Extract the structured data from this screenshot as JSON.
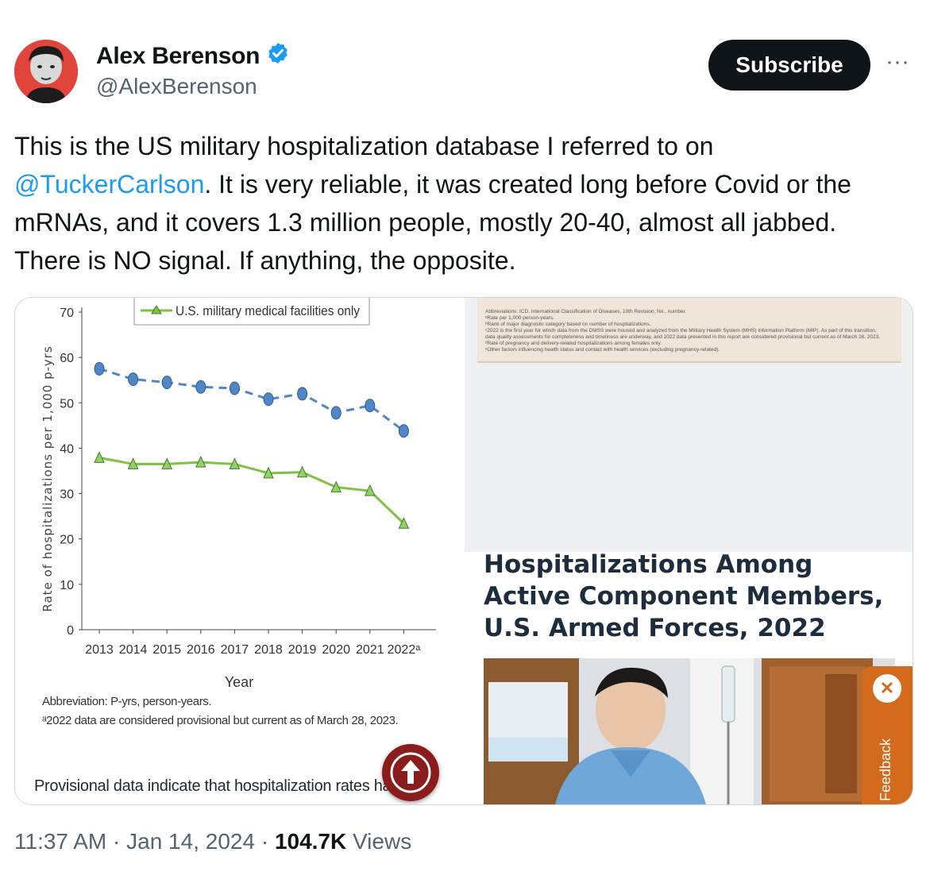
{
  "author": {
    "name": "Alex Berenson",
    "handle": "@AlexBerenson",
    "verified": true
  },
  "actions": {
    "subscribe_label": "Subscribe",
    "more_label": "···"
  },
  "tweet": {
    "text_before": "This is the US military hospitalization database I referred to on ",
    "mention": "@TuckerCarlson",
    "text_after": ". It is very reliable, it was created long before Covid or the mRNAs, and it covers 1.3 million people, mostly 20-40, almost all jabbed. There is NO signal. If anything, the opposite."
  },
  "media": {
    "chart": {
      "legend_label": "U.S. military medical facilities only",
      "abbreviation_note": "Abbreviation: P-yrs, person-years.",
      "footnote": "ᵃ2022 data are considered provisional but current as of March 28, 2023.",
      "provisional_text": "Provisional data indicate that hospitalization rates ha"
    },
    "report_notes": [
      "Abbreviations: ICD, International Classification of Diseases, 10th Revision; No., number.",
      "ᵃRate per 1,000 person-years.",
      "ᵇRank of major diagnostic category based on number of hospitalizations.",
      "ᶜ2022 is the first year for which data from the DMSS were housed and analyzed from the Military Health System (MHS) Information Platform (MIP). As part of this transition,",
      "data quality assessments for completeness and timeliness are underway, and 2022 data presented in this report are considered provisional but current as of March 28, 2023.",
      "ᵈRate of pregnancy and delivery-related hospitalizations among females only.",
      "ᵉOther factors influencing health status and contact with health services (excluding pregnancy-related)."
    ],
    "report_title": "Hospitalizations Among Active Component Members, U.S. Armed Forces, 2022",
    "feedback_label": "Feedback",
    "feedback_close": "✕"
  },
  "footer": {
    "time": "11:37 AM",
    "date": "Jan 14, 2024",
    "views_count": "104.7K",
    "views_label": "Views"
  },
  "chart_data": {
    "type": "line",
    "x": [
      "2013",
      "2014",
      "2015",
      "2016",
      "2017",
      "2018",
      "2019",
      "2020",
      "2021",
      "2022ᵃ"
    ],
    "xlabel": "Year",
    "ylabel": "Rate of hospitalizations per 1,000 p-yrs",
    "ylim": [
      0,
      70
    ],
    "yticks": [
      0,
      10,
      20,
      30,
      40,
      50,
      60,
      70
    ],
    "series": [
      {
        "values": [
          57.5,
          55.2,
          54.5,
          53.5,
          53.2,
          50.8,
          52.0,
          47.8,
          49.4,
          43.8
        ],
        "color": "#4f86c6",
        "style": "dashed",
        "marker": "circle"
      },
      {
        "name": "U.S. military medical facilities only",
        "values": [
          37.9,
          36.5,
          36.5,
          36.9,
          36.5,
          34.5,
          34.7,
          31.4,
          30.6,
          23.4
        ],
        "color": "#7dc242",
        "style": "solid",
        "marker": "triangle"
      }
    ],
    "legend": "top"
  }
}
